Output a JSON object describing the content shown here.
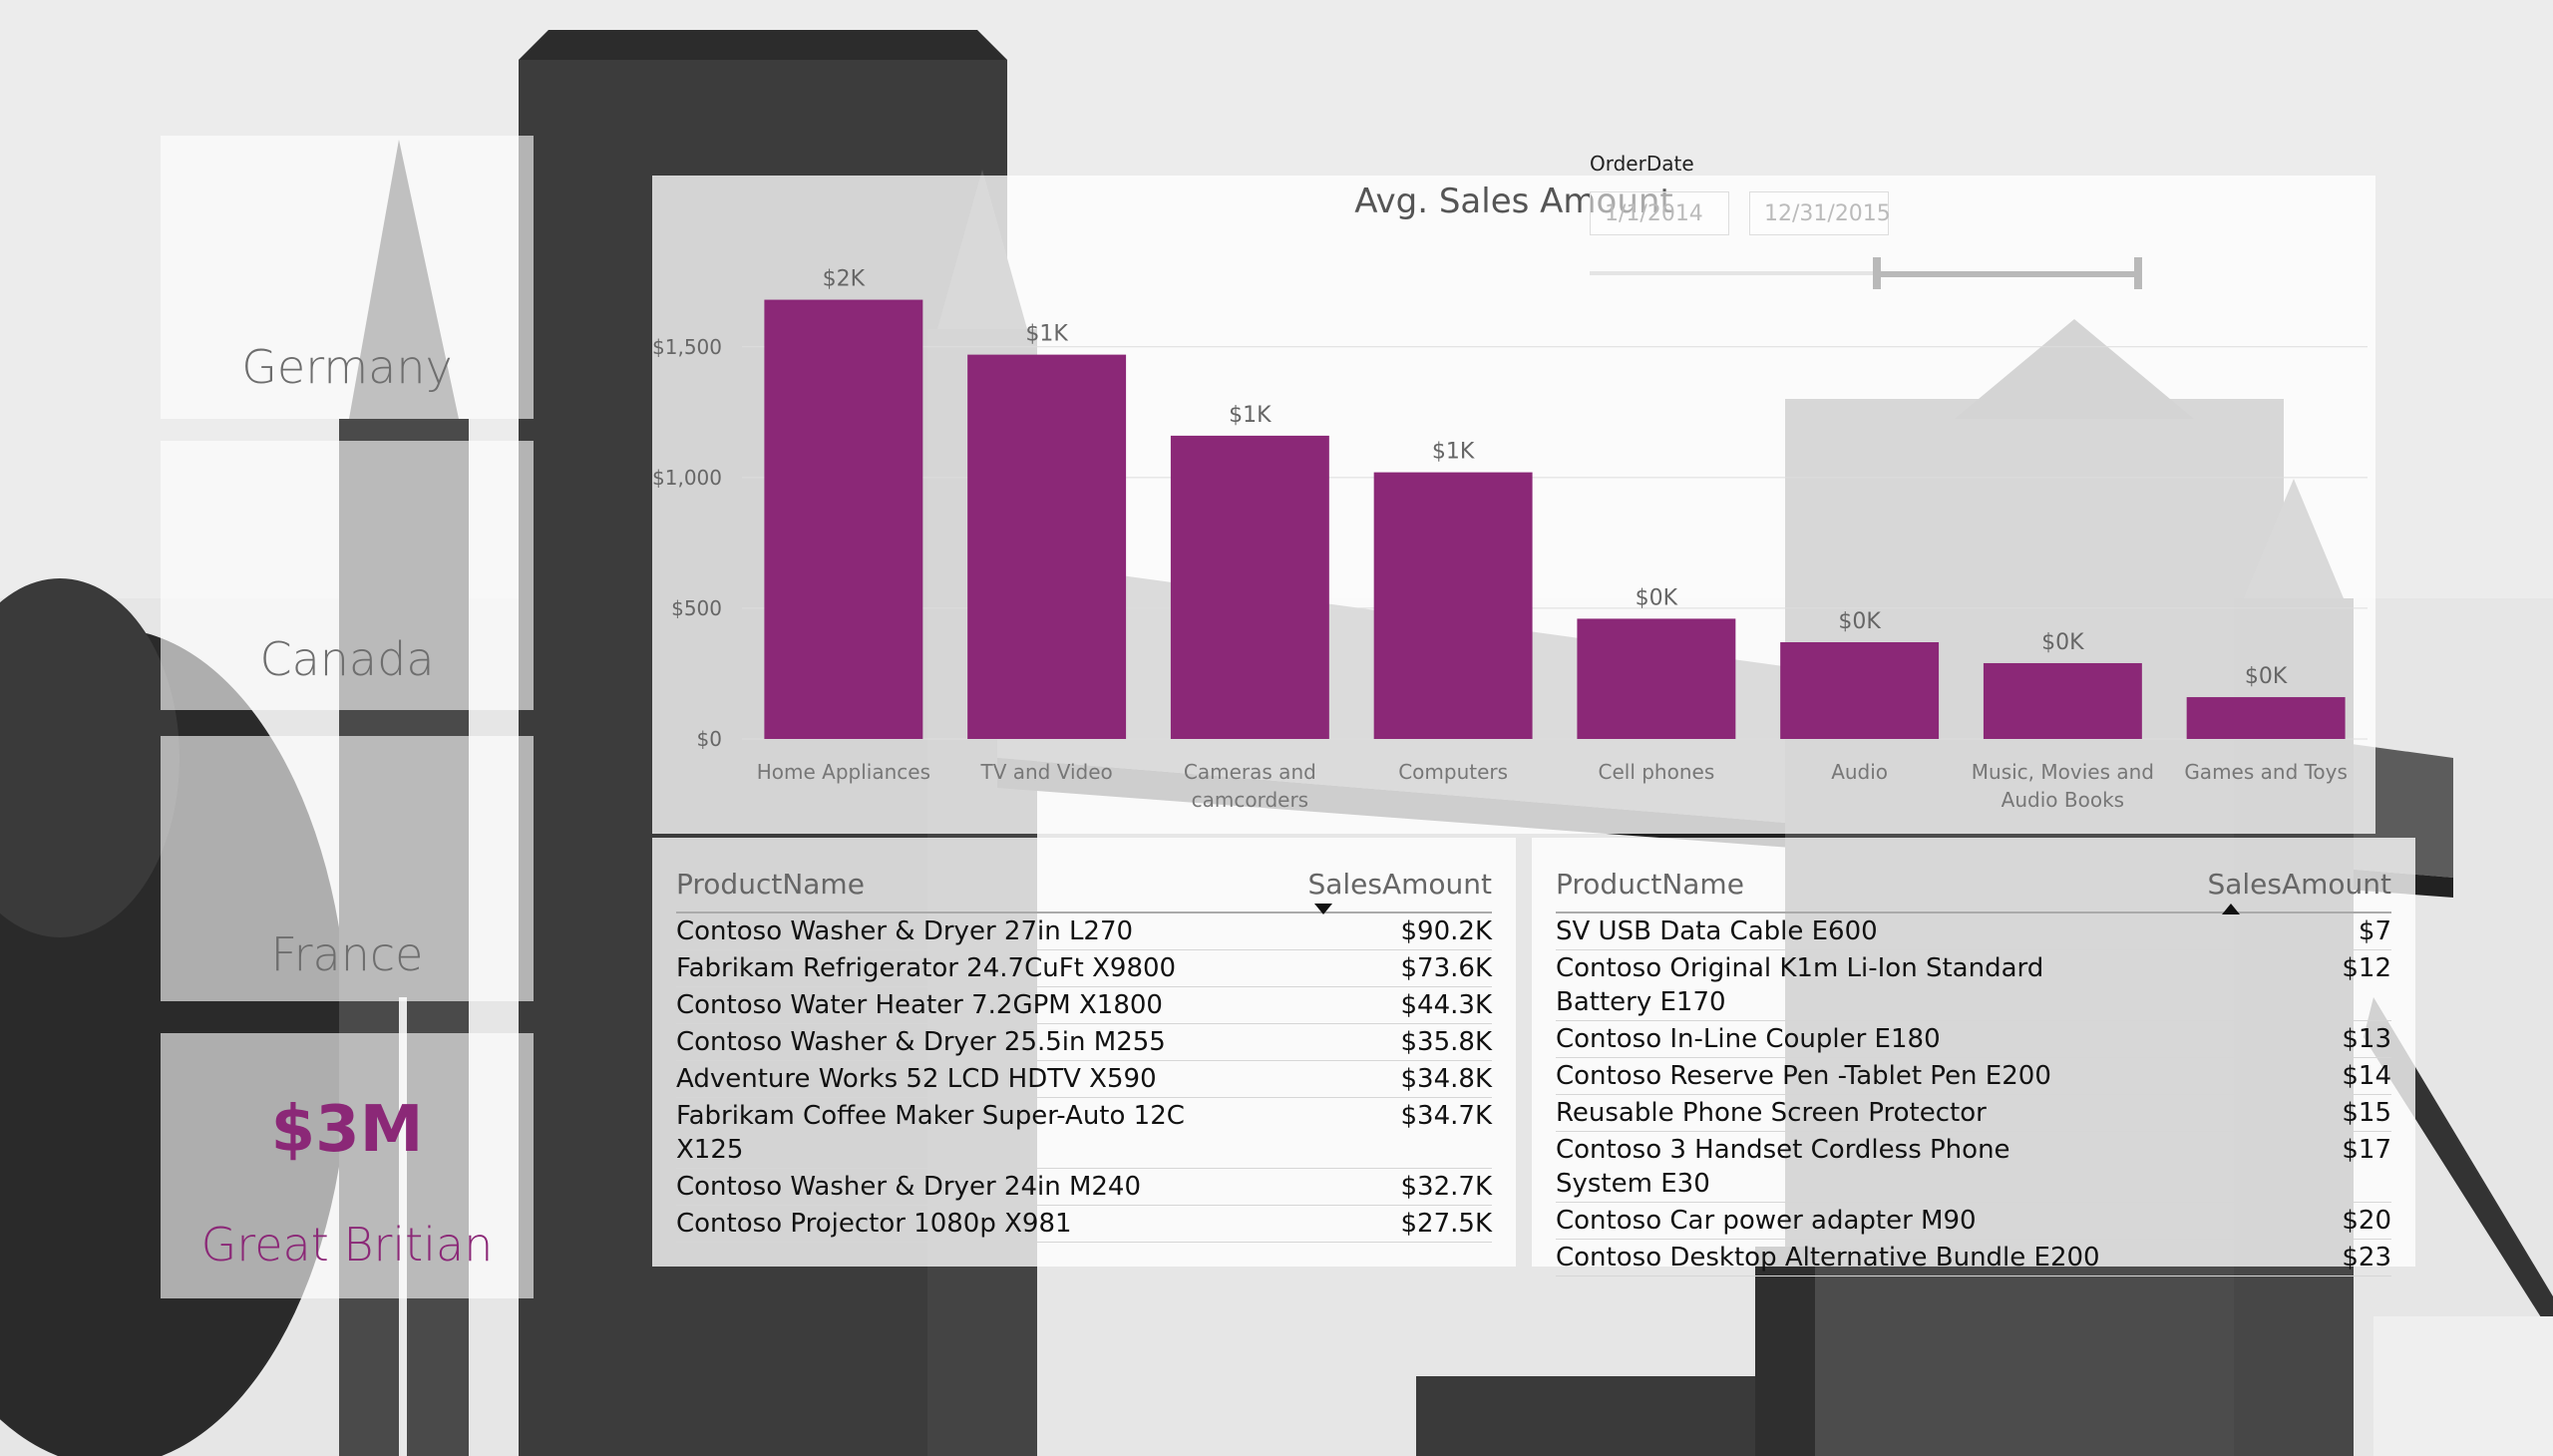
{
  "countries": [
    {
      "name": "Germany"
    },
    {
      "name": "Canada"
    },
    {
      "name": "France"
    },
    {
      "name": "Great Britian",
      "value": "$3M"
    }
  ],
  "slicer": {
    "title": "OrderDate",
    "start": "1/1/2014",
    "end": "12/31/2015"
  },
  "chart_data": {
    "type": "bar",
    "title": "Avg. Sales Amount",
    "categories": [
      "Home Appliances",
      "TV and Video",
      "Cameras and camcorders",
      "Computers",
      "Cell phones",
      "Audio",
      "Music, Movies and Audio Books",
      "Games and Toys"
    ],
    "values": [
      1680,
      1470,
      1160,
      1020,
      460,
      370,
      290,
      160
    ],
    "data_labels": [
      "$2K",
      "$1K",
      "$1K",
      "$1K",
      "$0K",
      "$0K",
      "$0K",
      "$0K"
    ],
    "y_ticks": [
      "$0",
      "$500",
      "$1,000",
      "$1,500"
    ],
    "y_tick_values": [
      0,
      500,
      1000,
      1500
    ],
    "ylim": [
      0,
      1850
    ],
    "color": "#8b2877",
    "grid": true
  },
  "table_left": {
    "col1": "ProductName",
    "col2": "SalesAmount",
    "sort": "descending",
    "rows": [
      {
        "product": "Contoso Washer & Dryer 27in L270",
        "amount": "$90.2K"
      },
      {
        "product": "Fabrikam Refrigerator 24.7CuFt X9800",
        "amount": "$73.6K"
      },
      {
        "product": "Contoso Water Heater 7.2GPM X1800",
        "amount": "$44.3K"
      },
      {
        "product": "Contoso Washer & Dryer 25.5in M255",
        "amount": "$35.8K"
      },
      {
        "product": "Adventure Works 52 LCD HDTV X590",
        "amount": "$34.8K"
      },
      {
        "product": "Fabrikam Coffee Maker Super-Auto 12C X125",
        "amount": "$34.7K"
      },
      {
        "product": "Contoso Washer & Dryer 24in M240",
        "amount": "$32.7K"
      },
      {
        "product": "Contoso Projector 1080p X981",
        "amount": "$27.5K"
      }
    ]
  },
  "table_right": {
    "col1": "ProductName",
    "col2": "SalesAmount",
    "sort": "ascending",
    "rows": [
      {
        "product": "SV USB Data Cable E600",
        "amount": "$7"
      },
      {
        "product": "Contoso Original K1m Li-Ion Standard Battery E170",
        "amount": "$12"
      },
      {
        "product": "Contoso In-Line Coupler E180",
        "amount": "$13"
      },
      {
        "product": "Contoso Reserve Pen -Tablet Pen E200",
        "amount": "$14"
      },
      {
        "product": "Reusable Phone Screen Protector",
        "amount": "$15"
      },
      {
        "product": "Contoso 3 Handset Cordless Phone System E30",
        "amount": "$17"
      },
      {
        "product": "Contoso Car power adapter M90",
        "amount": "$20"
      },
      {
        "product": "Contoso Desktop Alternative Bundle E200",
        "amount": "$23"
      }
    ]
  }
}
